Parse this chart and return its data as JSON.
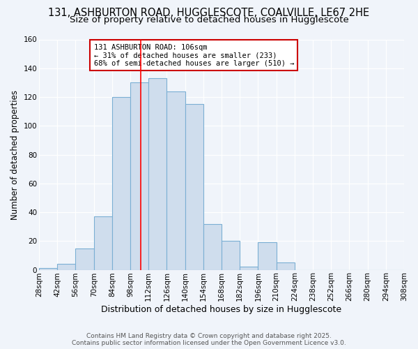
{
  "title_line1": "131, ASHBURTON ROAD, HUGGLESCOTE, COALVILLE, LE67 2HE",
  "title_line2": "Size of property relative to detached houses in Hugglescote",
  "xlabel": "Distribution of detached houses by size in Hugglescote",
  "ylabel": "Number of detached properties",
  "bin_edges": [
    28,
    42,
    56,
    70,
    84,
    98,
    112,
    126,
    140,
    154,
    168,
    182,
    196,
    210,
    224,
    238,
    252,
    266,
    280,
    294,
    308
  ],
  "bar_heights": [
    1,
    4,
    15,
    37,
    120,
    130,
    133,
    124,
    115,
    32,
    20,
    2,
    19,
    5,
    0,
    0,
    0,
    0,
    0,
    0
  ],
  "bar_color": "#cfdded",
  "bar_edge_color": "#7bafd4",
  "bar_edge_width": 0.8,
  "red_line_x": 106,
  "ylim": [
    0,
    160
  ],
  "yticks": [
    0,
    20,
    40,
    60,
    80,
    100,
    120,
    140,
    160
  ],
  "background_color": "#f0f4fa",
  "grid_color": "#ffffff",
  "annotation_text": "131 ASHBURTON ROAD: 106sqm\n← 31% of detached houses are smaller (233)\n68% of semi-detached houses are larger (510) →",
  "annotation_box_color": "#ffffff",
  "annotation_box_edge": "#cc0000",
  "footer_line1": "Contains HM Land Registry data © Crown copyright and database right 2025.",
  "footer_line2": "Contains public sector information licensed under the Open Government Licence v3.0.",
  "title_fontsize": 10.5,
  "subtitle_fontsize": 9.5,
  "xlabel_fontsize": 9,
  "ylabel_fontsize": 8.5,
  "tick_fontsize": 7.5,
  "annotation_fontsize": 7.5,
  "footer_fontsize": 6.5
}
